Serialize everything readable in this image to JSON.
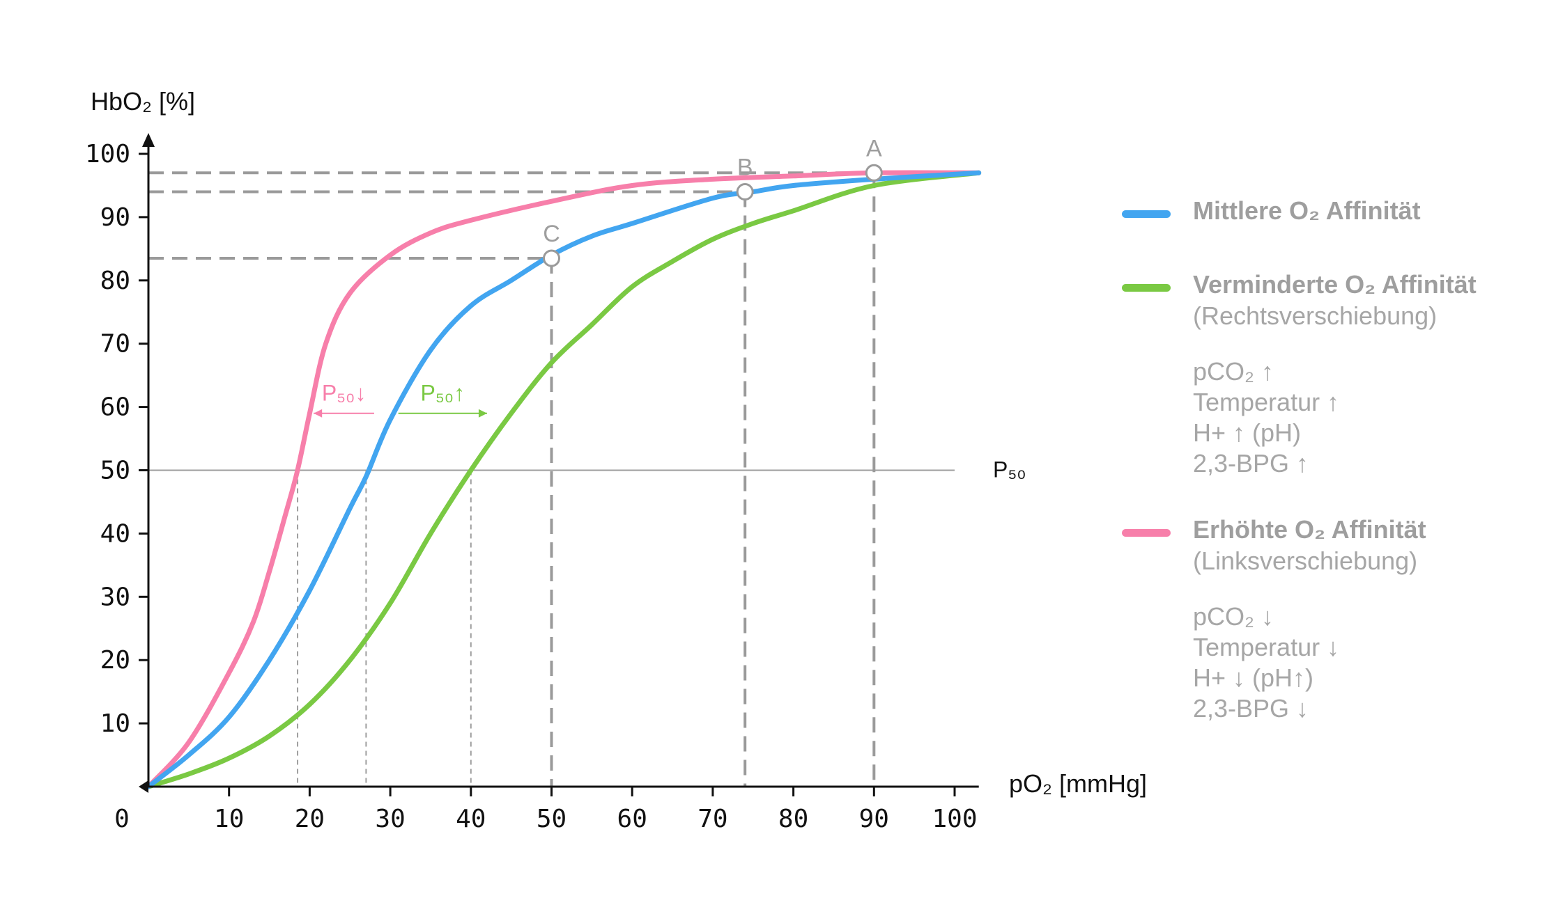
{
  "chart_data": {
    "type": "line",
    "ylabel": "HbO₂ [%]",
    "xlabel": "pO₂ [mmHg]",
    "origin_label": "0",
    "xlim": [
      0,
      103
    ],
    "ylim": [
      0,
      100
    ],
    "x_ticks": [
      "10",
      "20",
      "30",
      "40",
      "50",
      "60",
      "70",
      "80",
      "90",
      "100"
    ],
    "y_ticks": [
      "10",
      "20",
      "30",
      "40",
      "50",
      "60",
      "70",
      "80",
      "90",
      "100"
    ],
    "grid": false,
    "legend_position": "right",
    "p50_line": {
      "y": 50,
      "label": "P₅₀"
    },
    "series": [
      {
        "name": "Mittlere O₂ Affinität",
        "color": "#42a5f0",
        "x": [
          0,
          5,
          10,
          15,
          20,
          25,
          27,
          30,
          35,
          40,
          45,
          50,
          55,
          60,
          70,
          75,
          80,
          90,
          103
        ],
        "y": [
          0,
          5,
          11,
          20,
          31,
          44,
          49,
          58,
          69,
          76,
          80,
          84,
          87,
          89,
          93,
          94,
          95,
          96,
          97
        ]
      },
      {
        "name": "Verminderte O₂ Affinität",
        "color": "#7ac943",
        "x": [
          0,
          5,
          10,
          15,
          20,
          25,
          30,
          35,
          40,
          45,
          50,
          55,
          60,
          65,
          70,
          75,
          80,
          90,
          103
        ],
        "y": [
          0,
          2,
          4.5,
          8,
          13,
          20,
          29,
          40,
          50,
          59,
          67,
          73,
          79,
          83,
          86.5,
          89,
          91,
          95,
          97
        ]
      },
      {
        "name": "Erhöhte O₂ Affinität",
        "color": "#f77faa",
        "x": [
          0,
          5,
          10,
          13,
          15,
          17,
          18.5,
          20,
          22,
          25,
          30,
          35,
          40,
          50,
          60,
          70,
          80,
          90,
          103
        ],
        "y": [
          0,
          7,
          18,
          26,
          34,
          43,
          50,
          59,
          70,
          78,
          84,
          87.5,
          89.5,
          92.5,
          95,
          96,
          96.5,
          97,
          97
        ]
      }
    ],
    "reference_lines": {
      "p50_x": [
        18.5,
        27,
        40
      ],
      "points": [
        {
          "label": "A",
          "x": 90,
          "y": 97
        },
        {
          "label": "B",
          "x": 74,
          "y": 94
        },
        {
          "label": "C",
          "x": 50,
          "y": 83.5
        }
      ]
    },
    "annotations": [
      {
        "text": "P₅₀↓",
        "color": "#f77faa",
        "arrow_from_x": 28,
        "arrow_to_x": 20.5,
        "y": 59
      },
      {
        "text": "P₅₀↑",
        "color": "#7ac943",
        "arrow_from_x": 31,
        "arrow_to_x": 42,
        "y": 59
      }
    ]
  },
  "legend": {
    "items": [
      {
        "title": "Mittlere O₂ Affinität",
        "color": "#42a5f0",
        "subtitle": "",
        "factors": []
      },
      {
        "title": "Verminderte O₂ Affinität",
        "color": "#7ac943",
        "subtitle": "(Rechtsverschiebung)",
        "factors": [
          "pCO₂ ↑",
          "Temperatur ↑",
          "H+ ↑ (pH)",
          "2,3-BPG ↑"
        ]
      },
      {
        "title": "Erhöhte O₂ Affinität",
        "color": "#f77faa",
        "subtitle": "(Linksverschiebung)",
        "factors": [
          "pCO₂ ↓",
          "Temperatur ↓",
          "H+ ↓ (pH↑)",
          "2,3-BPG ↓"
        ]
      }
    ]
  }
}
